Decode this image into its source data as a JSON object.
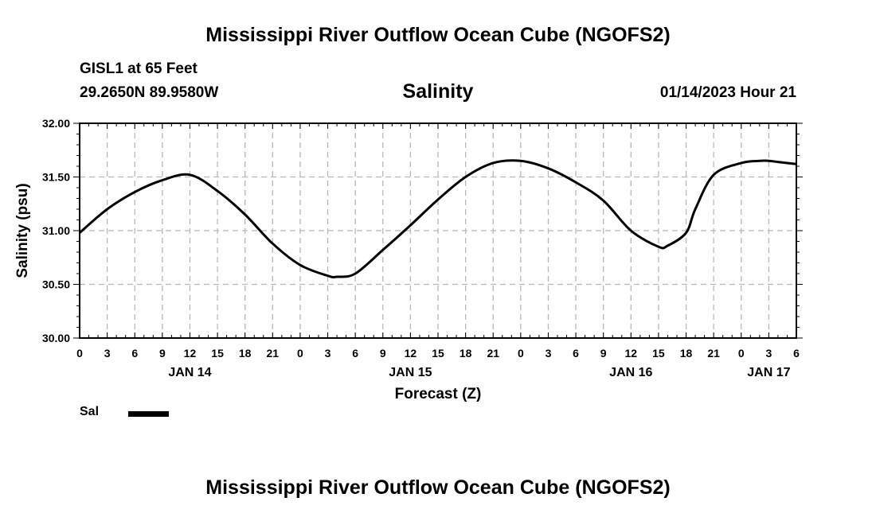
{
  "page": {
    "title_top": "Mississippi River Outflow Ocean Cube (NGOFS2)",
    "title_bottom": "Mississippi River Outflow Ocean Cube (NGOFS2)",
    "station": "GISL1 at 65 Feet",
    "coords": "29.2650N  89.9580W",
    "subtitle": "Salinity",
    "timestamp": "01/14/2023 Hour 21"
  },
  "legend": {
    "label": "Sal",
    "color": "#000000"
  },
  "chart_data": {
    "type": "line",
    "title": "Salinity",
    "xlabel": "Forecast (Z)",
    "ylabel": "Salinity (psu)",
    "xlim": [
      0,
      78
    ],
    "ylim": [
      30.0,
      32.0
    ],
    "grid": true,
    "x_tick_labels": [
      "0",
      "3",
      "6",
      "9",
      "12",
      "15",
      "18",
      "21",
      "0",
      "3",
      "6",
      "9",
      "12",
      "15",
      "18",
      "21",
      "0",
      "3",
      "6",
      "9",
      "12",
      "15",
      "18",
      "21",
      "0",
      "3",
      "6"
    ],
    "date_labels": [
      {
        "label": "JAN 14",
        "hour": 12
      },
      {
        "label": "JAN 15",
        "hour": 36
      },
      {
        "label": "JAN 16",
        "hour": 60
      },
      {
        "label": "JAN 17",
        "hour": 75
      }
    ],
    "y_ticks": [
      "30.00",
      "30.50",
      "31.00",
      "31.50",
      "32.00"
    ],
    "series": [
      {
        "name": "Sal",
        "x": [
          0,
          3,
          6,
          9,
          12,
          15,
          18,
          21,
          24,
          27,
          28,
          30,
          33,
          36,
          39,
          42,
          45,
          48,
          51,
          54,
          57,
          60,
          63,
          64,
          66,
          67,
          69,
          72,
          74,
          75,
          76,
          78
        ],
        "y": [
          30.98,
          31.2,
          31.36,
          31.47,
          31.52,
          31.37,
          31.15,
          30.88,
          30.68,
          30.58,
          30.57,
          30.6,
          30.82,
          31.05,
          31.29,
          31.5,
          31.63,
          31.65,
          31.58,
          31.45,
          31.28,
          31.0,
          30.85,
          30.86,
          30.98,
          31.2,
          31.52,
          31.63,
          31.65,
          31.65,
          31.64,
          31.62
        ]
      }
    ]
  }
}
